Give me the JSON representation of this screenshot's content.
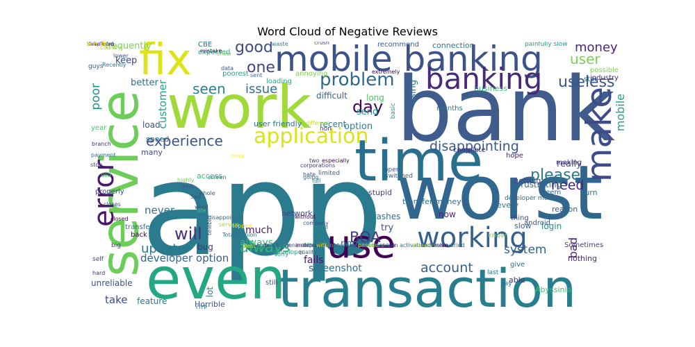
{
  "title": "Word Cloud of Negative Reviews",
  "words": [
    {
      "text": "app",
      "color": "#2a7b8e"
    },
    {
      "text": "bank",
      "color": "#3f5c8c"
    },
    {
      "text": "work",
      "color": "#a0da39"
    },
    {
      "text": "worst",
      "color": "#31678e"
    },
    {
      "text": "transaction",
      "color": "#277f8e"
    },
    {
      "text": "time",
      "color": "#2a6f8e"
    },
    {
      "text": "even",
      "color": "#23a883"
    },
    {
      "text": "service",
      "color": "#6cce59"
    },
    {
      "text": "fix",
      "color": "#dde318"
    },
    {
      "text": "mobile banking",
      "color": "#3b528b"
    },
    {
      "text": "make",
      "color": "#3e4c8a"
    },
    {
      "text": "use",
      "color": "#440154"
    },
    {
      "text": "banking",
      "color": "#472a7a"
    },
    {
      "text": "working",
      "color": "#355f8d"
    },
    {
      "text": "error",
      "color": "#48186a"
    },
    {
      "text": "application",
      "color": "#dde318"
    },
    {
      "text": "problem",
      "color": "#31688e"
    },
    {
      "text": "good",
      "color": "#3e4989"
    },
    {
      "text": "one",
      "color": "#414487"
    },
    {
      "text": "experience",
      "color": "#3b528b"
    },
    {
      "text": "poor",
      "color": "#21918c"
    },
    {
      "text": "customer",
      "color": "#20a386"
    },
    {
      "text": "seen",
      "color": "#25848e"
    },
    {
      "text": "issue",
      "color": "#2c718e"
    },
    {
      "text": "day",
      "color": "#440154"
    },
    {
      "text": "useless",
      "color": "#3a548c"
    },
    {
      "text": "user",
      "color": "#7ad151"
    },
    {
      "text": "money",
      "color": "#482878"
    },
    {
      "text": "disappointing",
      "color": "#39568c"
    },
    {
      "text": "please",
      "color": "#29788e"
    },
    {
      "text": "need",
      "color": "#482475"
    },
    {
      "text": "update",
      "color": "#2a788e"
    },
    {
      "text": "will",
      "color": "#472d7b"
    },
    {
      "text": "always",
      "color": "#34b679"
    },
    {
      "text": "BOA",
      "color": "#443983"
    },
    {
      "text": "account",
      "color": "#355e8d"
    },
    {
      "text": "system",
      "color": "#33628d"
    },
    {
      "text": "bad",
      "color": "#481f70"
    },
    {
      "text": "mobile",
      "color": "#20a386"
    },
    {
      "text": "developer option",
      "color": "#33638d"
    },
    {
      "text": "take",
      "color": "#3e4a89"
    },
    {
      "text": "frequently",
      "color": "#7ad151"
    },
    {
      "text": "keep",
      "color": "#3e4989"
    },
    {
      "text": "better",
      "color": "#2f6c8e"
    },
    {
      "text": "never",
      "color": "#2c728e"
    },
    {
      "text": "much",
      "color": "#48186a"
    },
    {
      "text": "always",
      "color": "#34b679"
    },
    {
      "text": "screenshot",
      "color": "#2e6e8e"
    },
    {
      "text": "fails",
      "color": "#471365"
    },
    {
      "text": "using",
      "color": "#297a8e"
    },
    {
      "text": "long",
      "color": "#4fc16b"
    },
    {
      "text": "send",
      "color": "#21918c"
    },
    {
      "text": "option",
      "color": "#277f8e"
    },
    {
      "text": "crashes",
      "color": "#2d708e"
    },
    {
      "text": "phone",
      "color": "#32658e"
    },
    {
      "text": "try",
      "color": "#3c4f8a"
    },
    {
      "text": "feature",
      "color": "#2a768e"
    },
    {
      "text": "unreliable",
      "color": "#3c508b"
    },
    {
      "text": "Horrible",
      "color": "#3d4d8a"
    },
    {
      "text": "CBE",
      "color": "#2b758e"
    },
    {
      "text": "expected",
      "color": "#25ab82"
    },
    {
      "text": "poorest",
      "color": "#1fa088"
    },
    {
      "text": "annoying",
      "color": "#7ad151"
    },
    {
      "text": "loading",
      "color": "#22a785"
    },
    {
      "text": "difficult",
      "color": "#33638d"
    },
    {
      "text": "recommend",
      "color": "#365c8d"
    },
    {
      "text": "connection",
      "color": "#2a788e"
    },
    {
      "text": "painfully slow",
      "color": "#1fa188"
    },
    {
      "text": "user friendly",
      "color": "#2c728e"
    },
    {
      "text": "stupid",
      "color": "#414487"
    },
    {
      "text": "open",
      "color": "#3b528b"
    },
    {
      "text": "switched",
      "color": "#32658e"
    },
    {
      "text": "limited",
      "color": "#31688e"
    },
    {
      "text": "access",
      "color": "#3cbb75"
    },
    {
      "text": "network",
      "color": "#404387"
    },
    {
      "text": "bug",
      "color": "#46337f"
    },
    {
      "text": "telebirr",
      "color": "#3b528b"
    },
    {
      "text": "lot",
      "color": "#2c738e"
    },
    {
      "text": "still",
      "color": "#3a538b"
    },
    {
      "text": "ASAP",
      "color": "#38598c"
    },
    {
      "text": "OTP",
      "color": "#2d708e"
    },
    {
      "text": "developer",
      "color": "#26ad81"
    },
    {
      "text": "several",
      "color": "#25ab82"
    },
    {
      "text": "transfer money",
      "color": "#2e6f8e"
    },
    {
      "text": "know",
      "color": "#6ece58"
    },
    {
      "text": "slow",
      "color": "#365d8d"
    },
    {
      "text": "Sometimes",
      "color": "#423f85"
    },
    {
      "text": "nothing",
      "color": "#472c7a"
    },
    {
      "text": "give",
      "color": "#2c718e"
    },
    {
      "text": "last",
      "color": "#2d708e"
    },
    {
      "text": "say",
      "color": "#2a768e"
    },
    {
      "text": "able",
      "color": "#46337f"
    },
    {
      "text": "Abyssinia",
      "color": "#3dbc74"
    },
    {
      "text": "months",
      "color": "#2a788e"
    },
    {
      "text": "business",
      "color": "#3aba76"
    },
    {
      "text": "recent",
      "color": "#277f8e"
    },
    {
      "text": "sure",
      "color": "#21918c"
    },
    {
      "text": "now",
      "color": "#482475"
    },
    {
      "text": "every",
      "color": "#2c718e"
    },
    {
      "text": "thing",
      "color": "#3f4889"
    },
    {
      "text": "login",
      "color": "#20928c"
    },
    {
      "text": "reason",
      "color": "#35608d"
    },
    {
      "text": "turn",
      "color": "#2d708e"
    },
    {
      "text": "frustrating",
      "color": "#32658e"
    },
    {
      "text": "really",
      "color": "#3e4989"
    },
    {
      "text": "seem",
      "color": "#34608d"
    },
    {
      "text": "hope",
      "color": "#481d6f"
    },
    {
      "text": "complete",
      "color": "#46307e"
    },
    {
      "text": "getting",
      "color": "#3f4788"
    },
    {
      "text": "developer mode",
      "color": "#2f6b8e"
    },
    {
      "text": "android",
      "color": "#3d4e8a"
    },
    {
      "text": "star",
      "color": "#2d708e"
    },
    {
      "text": "industry",
      "color": "#482576"
    },
    {
      "text": "possible",
      "color": "#7ad151"
    },
    {
      "text": "making",
      "color": "#453882"
    },
    {
      "text": "basic",
      "color": "#1fa088"
    },
    {
      "text": "extremely",
      "color": "#440154"
    },
    {
      "text": "load",
      "color": "#3b518b"
    },
    {
      "text": "speed",
      "color": "#2f6c8e"
    },
    {
      "text": "many",
      "color": "#3e4a89"
    },
    {
      "text": "year",
      "color": "#4ac16d"
    },
    {
      "text": "branch",
      "color": "#472d7b"
    },
    {
      "text": "payment",
      "color": "#2e6e8e"
    },
    {
      "text": "stop",
      "color": "#453882"
    },
    {
      "text": "old",
      "color": "#52c569"
    },
    {
      "text": "properly",
      "color": "#3f4788"
    },
    {
      "text": "closes",
      "color": "#414487"
    },
    {
      "text": "closed",
      "color": "#440154"
    },
    {
      "text": "transfer",
      "color": "#306a8e"
    },
    {
      "text": "back",
      "color": "#440154"
    },
    {
      "text": "big",
      "color": "#46307e"
    },
    {
      "text": "self",
      "color": "#3e4989"
    },
    {
      "text": "hard",
      "color": "#482878"
    },
    {
      "text": "guys",
      "color": "#31688e"
    },
    {
      "text": "country",
      "color": "#a2da37"
    },
    {
      "text": "Recently",
      "color": "#2d718e"
    },
    {
      "text": "lower",
      "color": "#3b528b"
    },
    {
      "text": "mistake",
      "color": "#471063"
    },
    {
      "text": "show",
      "color": "#7ad151"
    },
    {
      "text": "data",
      "color": "#3c508b"
    },
    {
      "text": "sent",
      "color": "#355f8d"
    },
    {
      "text": "waste",
      "color": "#24868e"
    },
    {
      "text": "crush",
      "color": "#3f4788"
    },
    {
      "text": "corporations",
      "color": "#453781"
    },
    {
      "text": "company",
      "color": "#3b528b"
    },
    {
      "text": "quality",
      "color": "#31688e"
    },
    {
      "text": "sorry",
      "color": "#20928c"
    },
    {
      "text": "without",
      "color": "#440154"
    },
    {
      "text": "going",
      "color": "#2d718e"
    },
    {
      "text": "full",
      "color": "#2c728e"
    },
    {
      "text": "hate",
      "color": "#3e4989"
    },
    {
      "text": "two",
      "color": "#46327e"
    },
    {
      "text": "different",
      "color": "#c8e020"
    },
    {
      "text": "non",
      "color": "#443983"
    },
    {
      "text": "especially",
      "color": "#440154"
    },
    {
      "text": "miss",
      "color": "#fde725"
    },
    {
      "text": "screen",
      "color": "#2e6e8e"
    },
    {
      "text": "whole",
      "color": "#3b528b"
    },
    {
      "text": "highly",
      "color": "#7ad151"
    },
    {
      "text": "limit",
      "color": "#3c508b"
    },
    {
      "text": "Sad",
      "color": "#3f4889"
    },
    {
      "text": "word",
      "color": "#3e4a89"
    },
    {
      "text": "life",
      "color": "#4ac16d"
    },
    {
      "text": "disappointed",
      "color": "#2d708e"
    },
    {
      "text": "service",
      "color": "#9fda3a"
    },
    {
      "text": "stopped",
      "color": "#fde725"
    },
    {
      "text": "Totally",
      "color": "#2a788e"
    },
    {
      "text": "opinion",
      "color": "#2d718e"
    },
    {
      "text": "Best",
      "color": "#d5e21a"
    },
    {
      "text": "solve",
      "color": "#3f4889"
    },
    {
      "text": "failure",
      "color": "#3b528b"
    },
    {
      "text": "delay",
      "color": "#2d718e"
    },
    {
      "text": "general",
      "color": "#423f85"
    },
    {
      "text": "incorrect",
      "color": "#472c7a"
    },
    {
      "text": "updating",
      "color": "#3e4989"
    },
    {
      "text": "within",
      "color": "#c8e020"
    },
    {
      "text": "soon",
      "color": "#3b528b"
    },
    {
      "text": "technical",
      "color": "#2c728e"
    },
    {
      "text": "lag",
      "color": "#3e4a89"
    },
    {
      "text": "password",
      "color": "#bddf26"
    },
    {
      "text": "ethiopia",
      "color": "#27ad81"
    },
    {
      "text": "apesa",
      "color": "#433e85"
    },
    {
      "text": "pin",
      "color": "#472d7b"
    },
    {
      "text": "activation",
      "color": "#2d708e"
    },
    {
      "text": "attractive",
      "color": "#bddf26"
    },
    {
      "text": "understand",
      "color": "#31688e"
    },
    {
      "text": "week",
      "color": "#3b528b"
    },
    {
      "text": "ve",
      "color": "#440154"
    },
    {
      "text": "tried",
      "color": "#2c728e"
    },
    {
      "text": "simple",
      "color": "#3e4a89"
    },
    {
      "text": "hand",
      "color": "#3b528b"
    },
    {
      "text": "download",
      "color": "#404387"
    },
    {
      "text": "safaricom",
      "color": "#46307e"
    },
    {
      "text": "receipt",
      "color": "#fde725"
    },
    {
      "text": "actually",
      "color": "#fde725"
    }
  ]
}
